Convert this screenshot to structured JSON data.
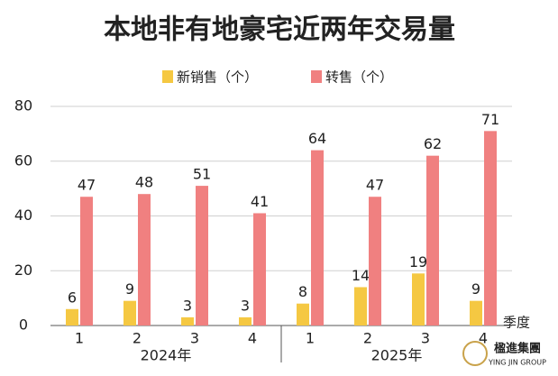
{
  "chart_data": {
    "type": "bar",
    "title": "本地非有地豪宅近两年交易量",
    "categories": [
      "1",
      "2",
      "3",
      "4",
      "1",
      "2",
      "3",
      "4"
    ],
    "group_labels": [
      "2024年",
      "2025年"
    ],
    "x_label": "季度",
    "series": [
      {
        "name": "新销售（个）",
        "color": "#f5c842",
        "values": [
          6,
          9,
          3,
          3,
          8,
          14,
          19,
          9
        ]
      },
      {
        "name": "转售（个）",
        "color": "#f08080",
        "values": [
          47,
          48,
          51,
          41,
          64,
          47,
          62,
          71
        ]
      }
    ],
    "ylim": [
      0,
      80
    ],
    "yticks": [
      0,
      20,
      40,
      60,
      80
    ],
    "grid": true,
    "watermark": {
      "name": "楹進集團",
      "subtitle": "YING JIN GROUP"
    }
  }
}
